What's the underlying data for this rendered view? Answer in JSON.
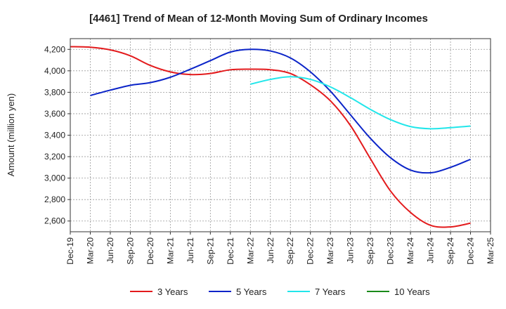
{
  "chart_data": {
    "type": "line",
    "title": "[4461]  Trend of Mean of 12-Month Moving Sum of Ordinary Incomes",
    "xlabel": "",
    "ylabel": "Amount (million yen)",
    "ylim": [
      2500,
      4300
    ],
    "yticks": [
      2600,
      2800,
      3000,
      3200,
      3400,
      3600,
      3800,
      4000,
      4200
    ],
    "ytick_labels": [
      "2,600",
      "2,800",
      "3,000",
      "3,200",
      "3,400",
      "3,600",
      "3,800",
      "4,000",
      "4,200"
    ],
    "categories": [
      "Dec-19",
      "Mar-20",
      "Jun-20",
      "Sep-20",
      "Dec-20",
      "Mar-21",
      "Jun-21",
      "Sep-21",
      "Dec-21",
      "Mar-22",
      "Jun-22",
      "Sep-22",
      "Dec-22",
      "Mar-23",
      "Jun-23",
      "Sep-23",
      "Dec-23",
      "Mar-24",
      "Jun-24",
      "Sep-24",
      "Dec-24",
      "Mar-25"
    ],
    "grid": true,
    "legend_position": "bottom",
    "series": [
      {
        "name": "3 Years",
        "color": "#e31a1c",
        "values": [
          4225,
          4220,
          4195,
          4140,
          4050,
          3990,
          3965,
          3975,
          4010,
          4015,
          4010,
          3975,
          3870,
          3720,
          3490,
          3180,
          2880,
          2680,
          2560,
          2545,
          2580,
          null
        ]
      },
      {
        "name": "5 Years",
        "color": "#0b24c8",
        "values": [
          null,
          3770,
          3820,
          3865,
          3890,
          3940,
          4015,
          4095,
          4175,
          4200,
          4185,
          4120,
          3990,
          3810,
          3590,
          3370,
          3190,
          3075,
          3050,
          3100,
          3175,
          null
        ]
      },
      {
        "name": "7 Years",
        "color": "#22e6ea",
        "values": [
          null,
          null,
          null,
          null,
          null,
          null,
          null,
          null,
          null,
          3875,
          3920,
          3945,
          3920,
          3850,
          3750,
          3640,
          3545,
          3480,
          3460,
          3470,
          3485,
          null
        ]
      },
      {
        "name": "10 Years",
        "color": "#1a8a1a",
        "values": [
          null,
          null,
          null,
          null,
          null,
          null,
          null,
          null,
          null,
          null,
          null,
          null,
          null,
          null,
          null,
          null,
          null,
          null,
          null,
          null,
          null,
          null
        ]
      }
    ]
  },
  "colors": {
    "frame": "#333333",
    "grid": "#999999",
    "background": "#ffffff"
  }
}
